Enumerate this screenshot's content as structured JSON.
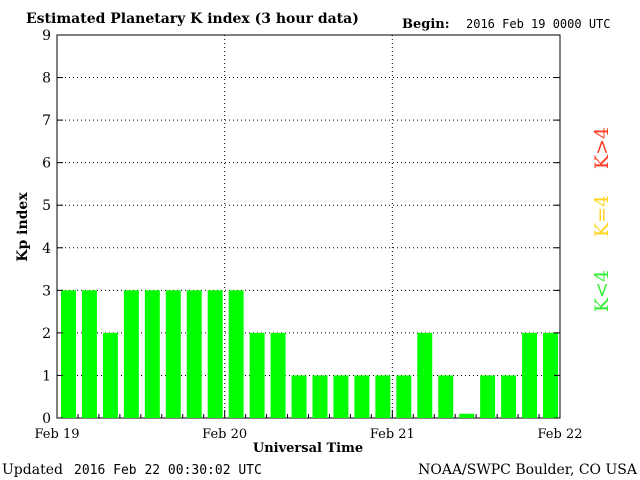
{
  "header": {
    "title": "Estimated Planetary K index (3 hour data)",
    "begin_label": "Begin:",
    "begin_value": "2016 Feb 19 0000 UTC"
  },
  "footer": {
    "updated_label": "Updated",
    "updated_value": "2016 Feb 22 00:30:02 UTC",
    "credit": "NOAA/SWPC Boulder, CO USA"
  },
  "legend": {
    "k_high": "K>4",
    "k_equal": "K=4",
    "k_low": "K<4"
  },
  "colors": {
    "bar_low": "#00ff00",
    "k_high": "#ff3b1f",
    "k_equal": "#ffd21a",
    "k_low": "#33ee33",
    "axis": "#000000",
    "grid": "#000000"
  },
  "chart_data": {
    "type": "bar",
    "title": "Estimated Planetary K index (3 hour data)",
    "xlabel": "Universal Time",
    "ylabel": "Kp index",
    "ylim": [
      0,
      9
    ],
    "yticks": [
      "0",
      "1",
      "2",
      "3",
      "4",
      "5",
      "6",
      "7",
      "8",
      "9"
    ],
    "xticks": [
      "Feb 19",
      "Feb 20",
      "Feb 21",
      "Feb 22"
    ],
    "grid": true,
    "bin_hours": 3,
    "values": [
      3,
      3,
      2,
      3,
      3,
      3,
      3,
      3,
      3,
      2,
      2,
      1,
      1,
      1,
      1,
      1,
      1,
      2,
      1,
      0.1,
      1,
      1,
      2,
      2
    ]
  }
}
